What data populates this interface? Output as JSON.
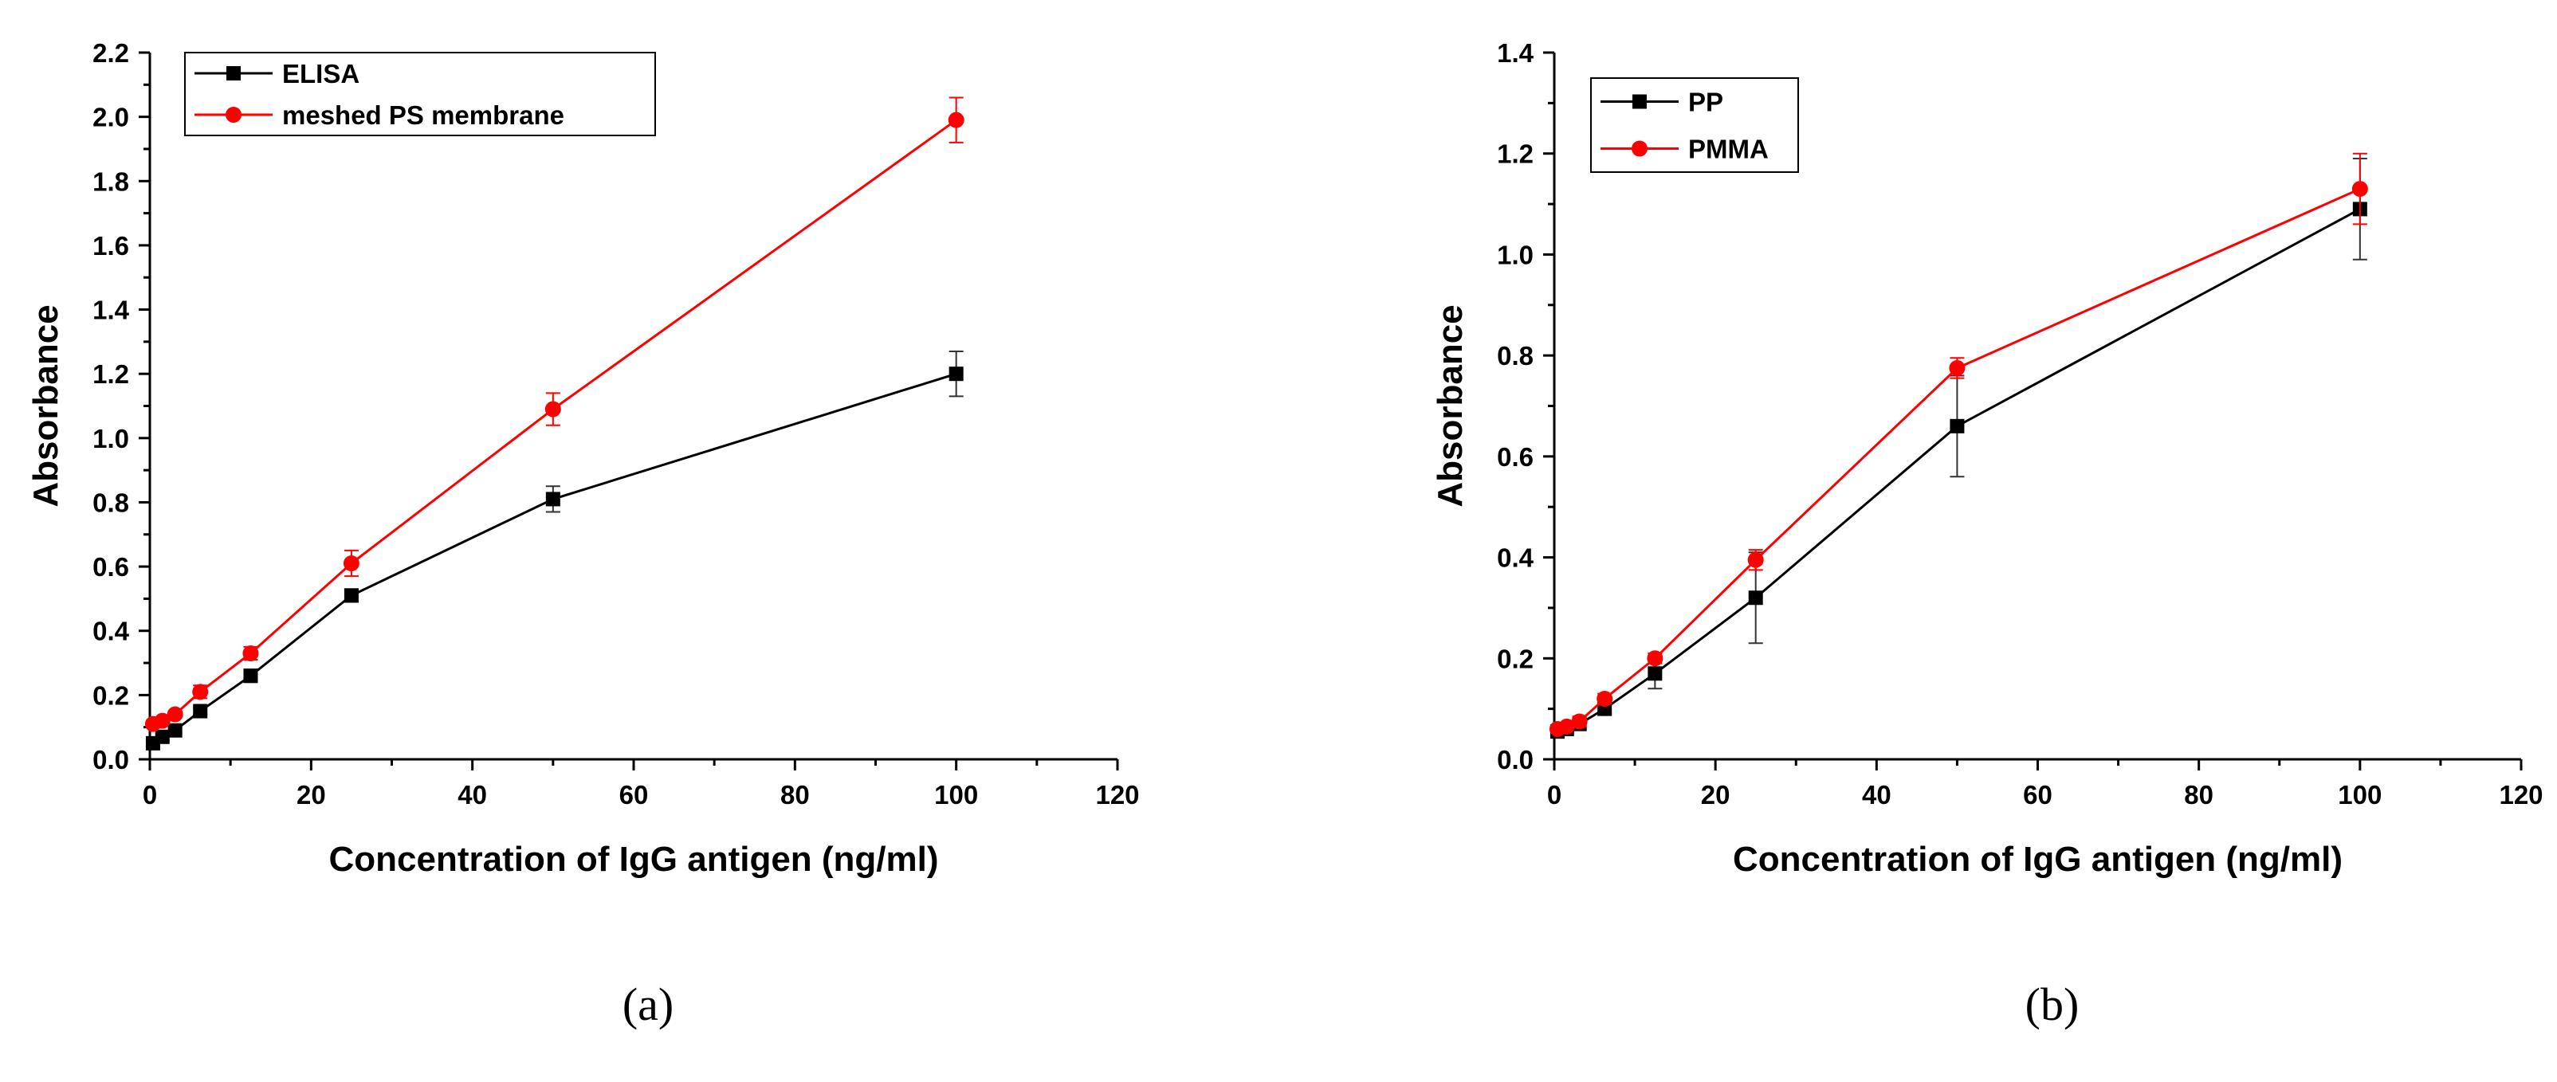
{
  "chart_data": [
    {
      "type": "line",
      "panel_label": "(a)",
      "xlabel": "Concentration of IgG antigen (ng/ml)",
      "ylabel": "Absorbance",
      "xlim": [
        0,
        120
      ],
      "ylim": [
        0,
        2.2
      ],
      "x_ticks": [
        0,
        20,
        40,
        60,
        80,
        100,
        120
      ],
      "y_ticks": [
        0.0,
        0.2,
        0.4,
        0.6,
        0.8,
        1.0,
        1.2,
        1.4,
        1.6,
        1.8,
        2.0,
        2.2
      ],
      "y_tick_labels": [
        "0.0",
        "0.2",
        "0.4",
        "0.6",
        "0.8",
        "1.0",
        "1.2",
        "1.4",
        "1.6",
        "1.8",
        "2.0",
        "2.2"
      ],
      "x_tick_labels": [
        "0",
        "20",
        "40",
        "60",
        "80",
        "100",
        "120"
      ],
      "legend_position": "top-left",
      "series": [
        {
          "name": "ELISA",
          "color": "#000000",
          "marker": "square",
          "x": [
            0.39,
            1.56,
            3.13,
            6.25,
            12.5,
            25,
            50,
            100
          ],
          "y": [
            0.05,
            0.07,
            0.09,
            0.15,
            0.26,
            0.51,
            0.81,
            1.2
          ],
          "err": [
            0.01,
            0.01,
            0.01,
            0.01,
            0.02,
            0.02,
            0.04,
            0.07
          ]
        },
        {
          "name": "meshed PS membrane",
          "color": "#ff0000",
          "marker": "circle",
          "x": [
            0.39,
            1.56,
            3.13,
            6.25,
            12.5,
            25,
            50,
            100
          ],
          "y": [
            0.11,
            0.12,
            0.14,
            0.21,
            0.33,
            0.61,
            1.09,
            1.99
          ],
          "err": [
            0.01,
            0.01,
            0.01,
            0.02,
            0.02,
            0.04,
            0.05,
            0.07
          ]
        }
      ]
    },
    {
      "type": "line",
      "panel_label": "(b)",
      "xlabel": "Concentration of IgG antigen (ng/ml)",
      "ylabel": "Absorbance",
      "xlim": [
        0,
        120
      ],
      "ylim": [
        0,
        1.4
      ],
      "x_ticks": [
        0,
        20,
        40,
        60,
        80,
        100,
        120
      ],
      "y_ticks": [
        0.0,
        0.2,
        0.4,
        0.6,
        0.8,
        1.0,
        1.2,
        1.4
      ],
      "y_tick_labels": [
        "0.0",
        "0.2",
        "0.4",
        "0.6",
        "0.8",
        "1.0",
        "1.2",
        "1.4"
      ],
      "x_tick_labels": [
        "0",
        "20",
        "40",
        "60",
        "80",
        "100",
        "120"
      ],
      "legend_position": "top-left",
      "series": [
        {
          "name": "PP",
          "color": "#000000",
          "marker": "square",
          "x": [
            0.39,
            1.56,
            3.13,
            6.25,
            12.5,
            25,
            50,
            100
          ],
          "y": [
            0.055,
            0.06,
            0.07,
            0.1,
            0.17,
            0.32,
            0.66,
            1.09
          ],
          "err": [
            0.005,
            0.005,
            0.01,
            0.01,
            0.03,
            0.09,
            0.1,
            0.1
          ]
        },
        {
          "name": "PMMA",
          "color": "#ff0000",
          "marker": "circle",
          "x": [
            0.39,
            1.56,
            3.13,
            6.25,
            12.5,
            25,
            50,
            100
          ],
          "y": [
            0.06,
            0.065,
            0.075,
            0.12,
            0.2,
            0.395,
            0.775,
            1.13
          ],
          "err": [
            0.005,
            0.005,
            0.01,
            0.01,
            0.01,
            0.02,
            0.02,
            0.07
          ]
        }
      ]
    }
  ]
}
